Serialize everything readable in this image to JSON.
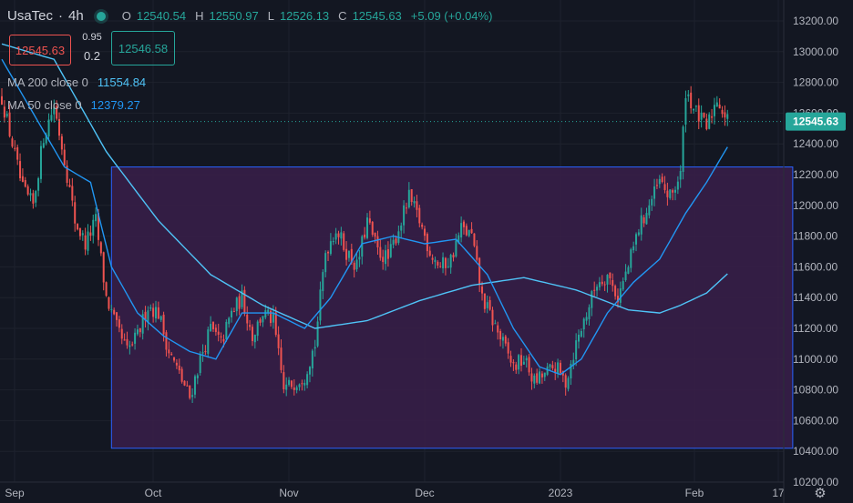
{
  "header": {
    "symbol": "UsaTec",
    "interval": "4h",
    "open_label": "O",
    "open": "12540.54",
    "high_label": "H",
    "high": "12550.97",
    "low_label": "L",
    "low": "12526.13",
    "close_label": "C",
    "close": "12545.63",
    "change": "+5.09 (+0.04%)"
  },
  "trade_panel": {
    "sell_price": "12545.63",
    "spread_top": "0.95",
    "spread_bottom": "0.2",
    "buy_price": "12546.58"
  },
  "indicators": [
    {
      "label": "MA 200 close 0",
      "value": "11554.84",
      "color": "#4fc3f7"
    },
    {
      "label": "MA 50 close 0",
      "value": "12379.27",
      "color": "#2196f3"
    }
  ],
  "colors": {
    "up": "#26a69a",
    "down": "#ef5350",
    "rectangle_fill": "#3a1f4a",
    "rectangle_border": "#2962ff",
    "price_tag": "#26a69a"
  },
  "chart_data": {
    "type": "candlestick",
    "symbol": "UsaTec",
    "interval": "4h",
    "ylim": [
      10200,
      13300
    ],
    "y_ticks": [
      "13200.00",
      "13000.00",
      "12800.00",
      "12600.00",
      "12400.00",
      "12200.00",
      "12000.00",
      "11800.00",
      "11600.00",
      "11400.00",
      "11200.00",
      "11000.00",
      "10800.00",
      "10600.00",
      "10400.00",
      "10200.00"
    ],
    "x_ticks": [
      "Sep",
      "Oct",
      "Nov",
      "Dec",
      "2023",
      "Feb",
      "17"
    ],
    "last_price": "12545.63",
    "close_path": [
      [
        0,
        12700
      ],
      [
        4,
        12400
      ],
      [
        8,
        12100
      ],
      [
        12,
        12000
      ],
      [
        16,
        12450
      ],
      [
        20,
        12650
      ],
      [
        24,
        12300
      ],
      [
        28,
        11900
      ],
      [
        32,
        11750
      ],
      [
        36,
        11900
      ],
      [
        40,
        11400
      ],
      [
        44,
        11200
      ],
      [
        48,
        11050
      ],
      [
        52,
        11150
      ],
      [
        56,
        11350
      ],
      [
        60,
        11300
      ],
      [
        64,
        11050
      ],
      [
        68,
        10900
      ],
      [
        72,
        10750
      ],
      [
        76,
        11000
      ],
      [
        80,
        11200
      ],
      [
        84,
        11100
      ],
      [
        88,
        11300
      ],
      [
        92,
        11400
      ],
      [
        96,
        11150
      ],
      [
        100,
        11300
      ],
      [
        104,
        11250
      ],
      [
        108,
        10800
      ],
      [
        112,
        10850
      ],
      [
        116,
        10900
      ],
      [
        120,
        11100
      ],
      [
        124,
        11700
      ],
      [
        128,
        11850
      ],
      [
        132,
        11700
      ],
      [
        136,
        11600
      ],
      [
        140,
        11900
      ],
      [
        144,
        11700
      ],
      [
        148,
        11650
      ],
      [
        152,
        11850
      ],
      [
        156,
        12050
      ],
      [
        160,
        11900
      ],
      [
        164,
        11700
      ],
      [
        168,
        11600
      ],
      [
        172,
        11650
      ],
      [
        176,
        11850
      ],
      [
        180,
        11800
      ],
      [
        184,
        11400
      ],
      [
        188,
        11250
      ],
      [
        192,
        11100
      ],
      [
        196,
        10950
      ],
      [
        200,
        11000
      ],
      [
        204,
        10850
      ],
      [
        208,
        10900
      ],
      [
        212,
        10950
      ],
      [
        216,
        10850
      ],
      [
        220,
        11100
      ],
      [
        224,
        11300
      ],
      [
        228,
        11500
      ],
      [
        232,
        11550
      ],
      [
        236,
        11400
      ],
      [
        240,
        11600
      ],
      [
        244,
        11850
      ],
      [
        248,
        12000
      ],
      [
        252,
        12150
      ],
      [
        256,
        12050
      ],
      [
        260,
        12200
      ],
      [
        262,
        12750
      ],
      [
        266,
        12600
      ],
      [
        270,
        12500
      ],
      [
        274,
        12700
      ],
      [
        278,
        12545
      ]
    ],
    "ma200": [
      [
        0,
        13050
      ],
      [
        20,
        12950
      ],
      [
        40,
        12350
      ],
      [
        60,
        11900
      ],
      [
        80,
        11550
      ],
      [
        100,
        11350
      ],
      [
        120,
        11200
      ],
      [
        140,
        11250
      ],
      [
        160,
        11380
      ],
      [
        180,
        11480
      ],
      [
        200,
        11530
      ],
      [
        220,
        11450
      ],
      [
        240,
        11320
      ],
      [
        252,
        11300
      ],
      [
        260,
        11350
      ],
      [
        270,
        11430
      ],
      [
        278,
        11555
      ]
    ],
    "ma50": [
      [
        0,
        12950
      ],
      [
        12,
        12600
      ],
      [
        24,
        12250
      ],
      [
        34,
        12150
      ],
      [
        42,
        11600
      ],
      [
        52,
        11300
      ],
      [
        62,
        11150
      ],
      [
        72,
        11050
      ],
      [
        82,
        11000
      ],
      [
        92,
        11300
      ],
      [
        104,
        11300
      ],
      [
        116,
        11200
      ],
      [
        126,
        11400
      ],
      [
        138,
        11750
      ],
      [
        150,
        11800
      ],
      [
        162,
        11750
      ],
      [
        174,
        11780
      ],
      [
        186,
        11550
      ],
      [
        196,
        11200
      ],
      [
        206,
        10950
      ],
      [
        214,
        10900
      ],
      [
        222,
        11000
      ],
      [
        232,
        11300
      ],
      [
        242,
        11500
      ],
      [
        252,
        11650
      ],
      [
        262,
        11950
      ],
      [
        270,
        12150
      ],
      [
        278,
        12380
      ]
    ],
    "rectangle": {
      "x_start": 42,
      "x_end": 303,
      "y_low": 10420,
      "y_high": 12250
    }
  }
}
